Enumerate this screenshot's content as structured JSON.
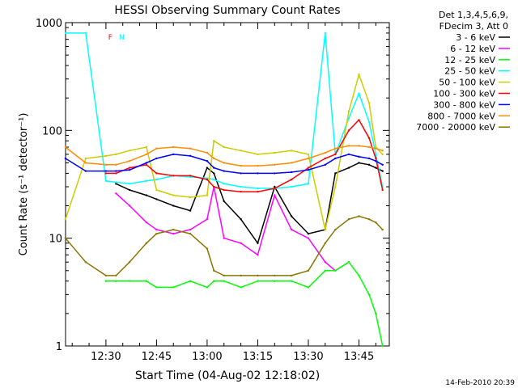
{
  "chart_data": {
    "type": "line",
    "title": "HESSI Observing Summary Count Rates",
    "xlabel": "Start Time (04-Aug-02 12:18:02)",
    "ylabel": "Count Rate (s⁻¹ detector⁻¹)",
    "ylog": true,
    "ylim": [
      1,
      1000
    ],
    "xlim": [
      "12:18:02",
      "13:54:00"
    ],
    "x_ticks": [
      "12:30",
      "12:45",
      "13:00",
      "13:15",
      "13:30",
      "13:45"
    ],
    "y_ticks": [
      "1",
      "10",
      "100",
      "1000"
    ],
    "legend_header": [
      "Det 1,3,4,5,6,9,",
      "FDecim 3, Att 0"
    ],
    "legend_position": "top-right, outside plot",
    "x": [
      "12:18",
      "12:24",
      "12:30",
      "12:33",
      "12:37",
      "12:42",
      "12:45",
      "12:50",
      "12:55",
      "13:00",
      "13:02",
      "13:05",
      "13:10",
      "13:15",
      "13:20",
      "13:25",
      "13:30",
      "13:35",
      "13:38",
      "13:42",
      "13:45",
      "13:48",
      "13:50",
      "13:52"
    ],
    "series": [
      {
        "name": "3 - 6 keV",
        "color": "#000000",
        "values": [
          null,
          null,
          null,
          32,
          28,
          25,
          23,
          20,
          18,
          45,
          40,
          22,
          15,
          9,
          30,
          16,
          11,
          12,
          40,
          45,
          50,
          48,
          45,
          42
        ]
      },
      {
        "name": "6 - 12 keV",
        "color": "#ff00ff",
        "values": [
          null,
          null,
          null,
          26,
          20,
          14,
          12,
          11,
          12,
          15,
          30,
          10,
          9,
          7,
          25,
          12,
          10,
          6,
          5,
          6,
          null,
          null,
          null,
          null
        ]
      },
      {
        "name": "12 - 25 keV",
        "color": "#00ff00",
        "values": [
          null,
          null,
          4,
          4,
          4,
          4,
          3.5,
          3.5,
          4,
          3.5,
          4,
          4,
          3.5,
          4,
          4,
          4,
          3.5,
          5,
          5,
          6,
          4.5,
          3,
          2,
          1
        ]
      },
      {
        "name": "25 - 50 keV",
        "color": "#00ffff",
        "values": [
          800,
          800,
          34,
          33,
          32,
          34,
          35,
          38,
          37,
          36,
          35,
          32,
          30,
          29,
          29,
          30,
          32,
          800,
          60,
          130,
          220,
          120,
          60,
          30
        ]
      },
      {
        "name": "50 - 100 keV",
        "color": "#cccc00",
        "values": [
          15,
          55,
          58,
          60,
          65,
          70,
          28,
          25,
          24,
          25,
          80,
          70,
          65,
          60,
          62,
          65,
          60,
          12,
          30,
          150,
          330,
          180,
          70,
          60
        ]
      },
      {
        "name": "100 - 300 keV",
        "color": "#ff0000",
        "values": [
          null,
          null,
          40,
          40,
          45,
          48,
          40,
          38,
          38,
          35,
          30,
          28,
          27,
          27,
          29,
          35,
          45,
          55,
          60,
          100,
          125,
          85,
          55,
          28
        ]
      },
      {
        "name": "300 - 800 keV",
        "color": "#0000ff",
        "values": [
          55,
          42,
          42,
          42,
          43,
          50,
          55,
          60,
          58,
          52,
          45,
          42,
          40,
          40,
          40,
          41,
          43,
          48,
          55,
          60,
          57,
          55,
          52,
          48
        ]
      },
      {
        "name": "800 - 7000 keV",
        "color": "#ff8c00",
        "values": [
          70,
          50,
          48,
          48,
          52,
          60,
          68,
          70,
          68,
          62,
          55,
          50,
          47,
          47,
          48,
          50,
          55,
          62,
          68,
          72,
          72,
          70,
          68,
          65
        ]
      },
      {
        "name": "7000 - 20000 keV",
        "color": "#8b7500",
        "values": [
          10,
          6,
          4.5,
          4.5,
          6,
          9,
          11,
          12,
          11,
          8,
          5,
          4.5,
          4.5,
          4.5,
          4.5,
          4.5,
          5,
          9,
          12,
          15,
          16,
          15,
          14,
          12
        ]
      }
    ],
    "attenuator_marks": [
      {
        "label": "F",
        "start": "12:33",
        "end": "12:33",
        "color": "#ff0000"
      },
      {
        "label": "N",
        "start": "12:33",
        "end": "12:33",
        "color": "#00ffff"
      }
    ],
    "footer_date": "14-Feb-2010 20:39"
  }
}
